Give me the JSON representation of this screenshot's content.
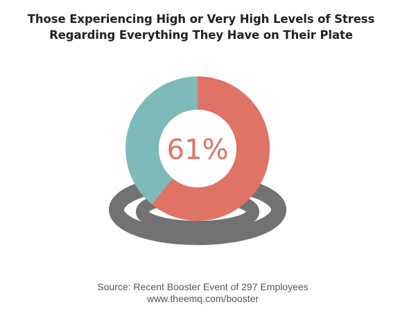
{
  "title": {
    "line1": "Those Experiencing High or Very High Levels of Stress",
    "line2": "Regarding Everything They Have on Their Plate"
  },
  "chart_data": {
    "type": "pie",
    "style": "donut",
    "title": "Those Experiencing High or Very High Levels of Stress Regarding Everything They Have on Their Plate",
    "center_label": "61%",
    "slices": [
      {
        "name": "",
        "value": 61,
        "color": "#e07364"
      },
      {
        "name": "",
        "value": 39,
        "color": "#7ebab9"
      }
    ],
    "base_ring_color": "#727272"
  },
  "source": {
    "line1": "Source:  Recent Booster Event of 297 Employees",
    "line2": "www.theemq.com/booster"
  }
}
